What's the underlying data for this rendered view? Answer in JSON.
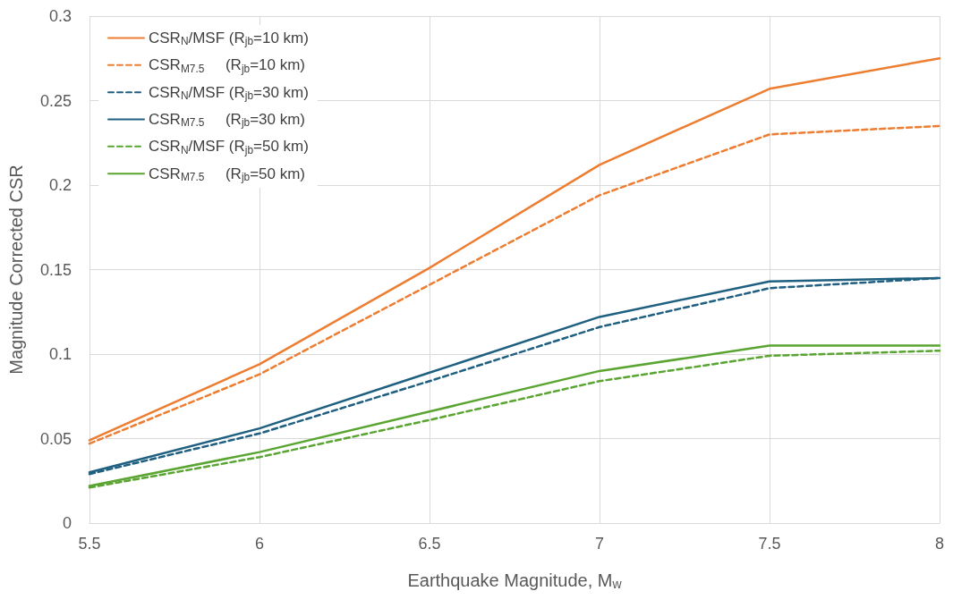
{
  "chart_data": {
    "type": "line",
    "xlabel": "Earthquake Magnitude, M$_{w}$",
    "ylabel": "Magnitude Corrected CSR",
    "x": [
      5.5,
      6,
      6.5,
      7,
      7.5,
      8
    ],
    "series": [
      {
        "name": "CSR$_{N}$/MSF (R$_{jb}$=10 km)",
        "color": "#ed7d31",
        "line_style": "solid",
        "values": [
          0.049,
          0.094,
          0.151,
          0.212,
          0.257,
          0.275
        ]
      },
      {
        "name": "CSR$_{M7.5}$     (R$_{jb}$=10 km)",
        "color": "#ed7d31",
        "line_style": "dashed",
        "values": [
          0.047,
          0.088,
          0.141,
          0.194,
          0.23,
          0.235
        ]
      },
      {
        "name": "CSR$_{N}$/MSF (R$_{jb}$=30 km)",
        "color": "#1f5f80",
        "line_style": "dashed",
        "values": [
          0.029,
          0.053,
          0.084,
          0.116,
          0.139,
          0.145
        ]
      },
      {
        "name": "CSR$_{M7.5}$     (R$_{jb}$=30 km)",
        "color": "#1f5f80",
        "line_style": "solid",
        "values": [
          0.03,
          0.056,
          0.089,
          0.122,
          0.143,
          0.145
        ]
      },
      {
        "name": "CSR$_{N}$/MSF (R$_{jb}$=50 km)",
        "color": "#5aa532",
        "line_style": "dashed",
        "values": [
          0.021,
          0.039,
          0.061,
          0.084,
          0.099,
          0.102
        ]
      },
      {
        "name": "CSR$_{M7.5}$     (R$_{jb}$=50 km)",
        "color": "#5aa532",
        "line_style": "solid",
        "values": [
          0.022,
          0.042,
          0.066,
          0.09,
          0.105,
          0.105
        ]
      }
    ],
    "xlim": [
      5.5,
      8
    ],
    "xticks": [
      5.5,
      6,
      6.5,
      7,
      7.5,
      8
    ],
    "ylim": [
      0,
      0.3
    ],
    "yticks": [
      0,
      0.05,
      0.1,
      0.15,
      0.2,
      0.25,
      0.3
    ],
    "grid": true,
    "legend": "top left",
    "marker": "none"
  }
}
